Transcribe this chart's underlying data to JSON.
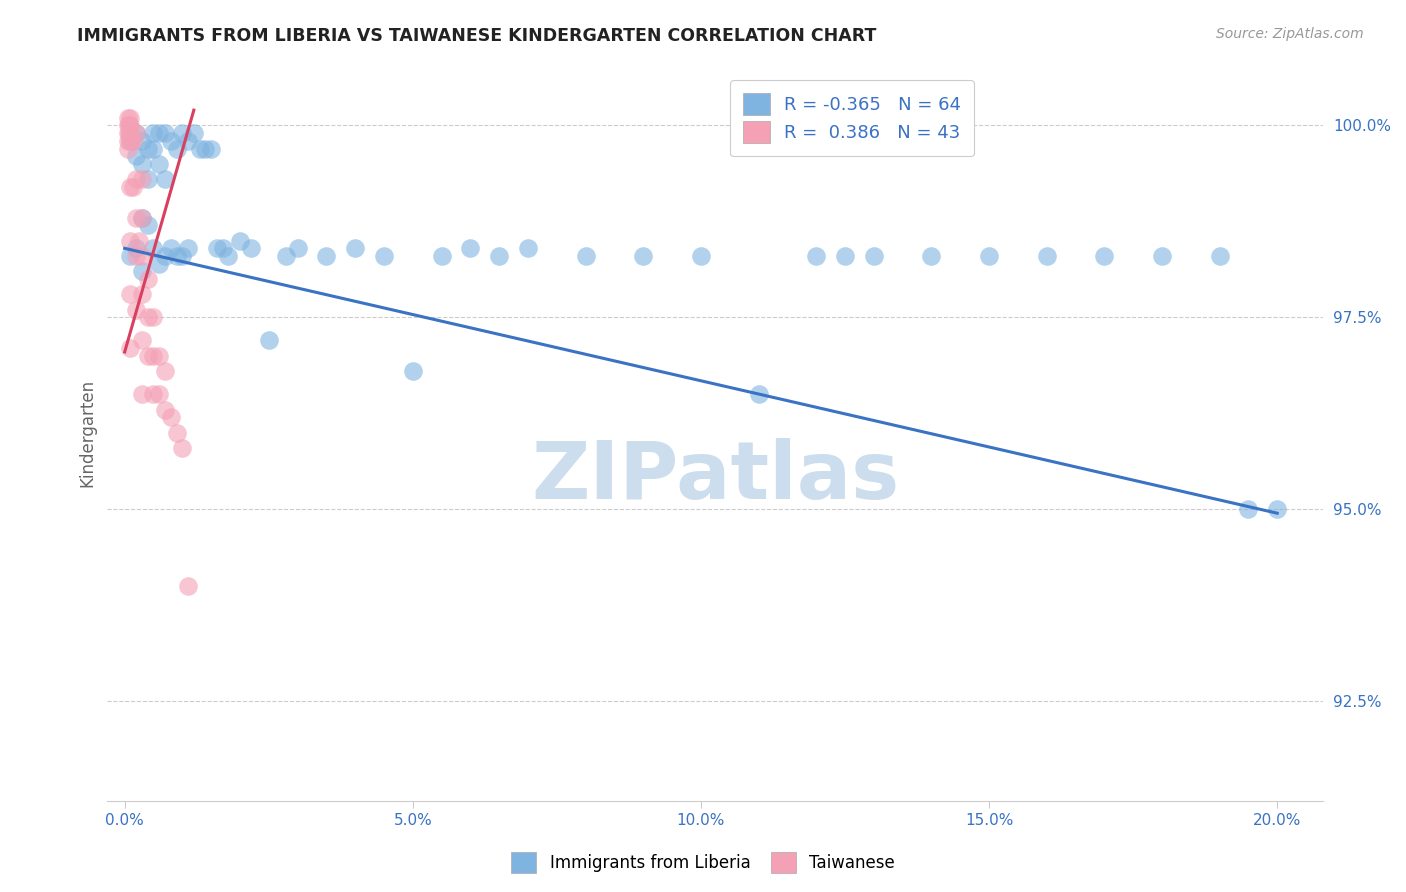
{
  "title": "IMMIGRANTS FROM LIBERIA VS TAIWANESE KINDERGARTEN CORRELATION CHART",
  "source": "Source: ZipAtlas.com",
  "ylabel": "Kindergarten",
  "ytick_labels": [
    "100.0%",
    "97.5%",
    "95.0%",
    "92.5%"
  ],
  "ytick_values": [
    1.0,
    0.975,
    0.95,
    0.925
  ],
  "xtick_values": [
    0.0,
    0.05,
    0.1,
    0.15,
    0.2
  ],
  "xtick_labels": [
    "0.0%",
    "5.0%",
    "10.0%",
    "15.0%",
    "20.0%"
  ],
  "xlim": [
    -0.003,
    0.208
  ],
  "ylim": [
    0.912,
    1.008
  ],
  "legend_blue_R": "-0.365",
  "legend_blue_N": "64",
  "legend_pink_R": "0.386",
  "legend_pink_N": "43",
  "blue_color": "#7fb3e0",
  "pink_color": "#f4a0b5",
  "trendline_blue_color": "#3a72c4",
  "trendline_pink_color": "#d94060",
  "watermark_text": "ZIPatlas",
  "watermark_color": "#ccdded",
  "axis_color": "#3a72c4",
  "grid_color": "#cccccc",
  "trendline_blue_x0": 0.0,
  "trendline_blue_y0": 0.984,
  "trendline_blue_x1": 0.2,
  "trendline_blue_y1": 0.9495,
  "trendline_pink_x0": 0.0,
  "trendline_pink_y0": 0.9705,
  "trendline_pink_x1": 0.012,
  "trendline_pink_y1": 1.002,
  "blue_x": [
    0.001,
    0.001,
    0.002,
    0.002,
    0.002,
    0.003,
    0.003,
    0.003,
    0.003,
    0.004,
    0.004,
    0.004,
    0.005,
    0.005,
    0.005,
    0.006,
    0.006,
    0.006,
    0.007,
    0.007,
    0.007,
    0.008,
    0.008,
    0.009,
    0.009,
    0.01,
    0.01,
    0.011,
    0.011,
    0.012,
    0.013,
    0.014,
    0.015,
    0.016,
    0.017,
    0.018,
    0.02,
    0.022,
    0.025,
    0.028,
    0.03,
    0.035,
    0.04,
    0.045,
    0.05,
    0.055,
    0.06,
    0.065,
    0.07,
    0.08,
    0.09,
    0.1,
    0.11,
    0.12,
    0.125,
    0.13,
    0.14,
    0.15,
    0.16,
    0.17,
    0.18,
    0.19,
    0.195,
    0.2
  ],
  "blue_y": [
    0.998,
    0.983,
    0.999,
    0.996,
    0.984,
    0.998,
    0.995,
    0.988,
    0.981,
    0.997,
    0.993,
    0.987,
    0.999,
    0.997,
    0.984,
    0.999,
    0.995,
    0.982,
    0.999,
    0.993,
    0.983,
    0.998,
    0.984,
    0.997,
    0.983,
    0.999,
    0.983,
    0.998,
    0.984,
    0.999,
    0.997,
    0.997,
    0.997,
    0.984,
    0.984,
    0.983,
    0.985,
    0.984,
    0.972,
    0.983,
    0.984,
    0.983,
    0.984,
    0.983,
    0.968,
    0.983,
    0.984,
    0.983,
    0.984,
    0.983,
    0.983,
    0.983,
    0.965,
    0.983,
    0.983,
    0.983,
    0.983,
    0.983,
    0.983,
    0.983,
    0.983,
    0.983,
    0.95,
    0.95
  ],
  "pink_x": [
    0.0005,
    0.0005,
    0.0005,
    0.0005,
    0.0005,
    0.0008,
    0.0008,
    0.001,
    0.001,
    0.001,
    0.001,
    0.001,
    0.001,
    0.001,
    0.001,
    0.0015,
    0.0015,
    0.002,
    0.002,
    0.002,
    0.002,
    0.002,
    0.0025,
    0.003,
    0.003,
    0.003,
    0.003,
    0.003,
    0.003,
    0.004,
    0.004,
    0.004,
    0.005,
    0.005,
    0.005,
    0.006,
    0.006,
    0.007,
    0.007,
    0.008,
    0.009,
    0.01,
    0.011
  ],
  "pink_y": [
    1.001,
    1.0,
    0.999,
    0.998,
    0.997,
    1.0,
    0.999,
    1.001,
    1.0,
    0.999,
    0.998,
    0.992,
    0.985,
    0.978,
    0.971,
    0.998,
    0.992,
    0.999,
    0.993,
    0.988,
    0.983,
    0.976,
    0.985,
    0.993,
    0.988,
    0.983,
    0.978,
    0.972,
    0.965,
    0.98,
    0.975,
    0.97,
    0.975,
    0.97,
    0.965,
    0.97,
    0.965,
    0.968,
    0.963,
    0.962,
    0.96,
    0.958,
    0.94
  ]
}
